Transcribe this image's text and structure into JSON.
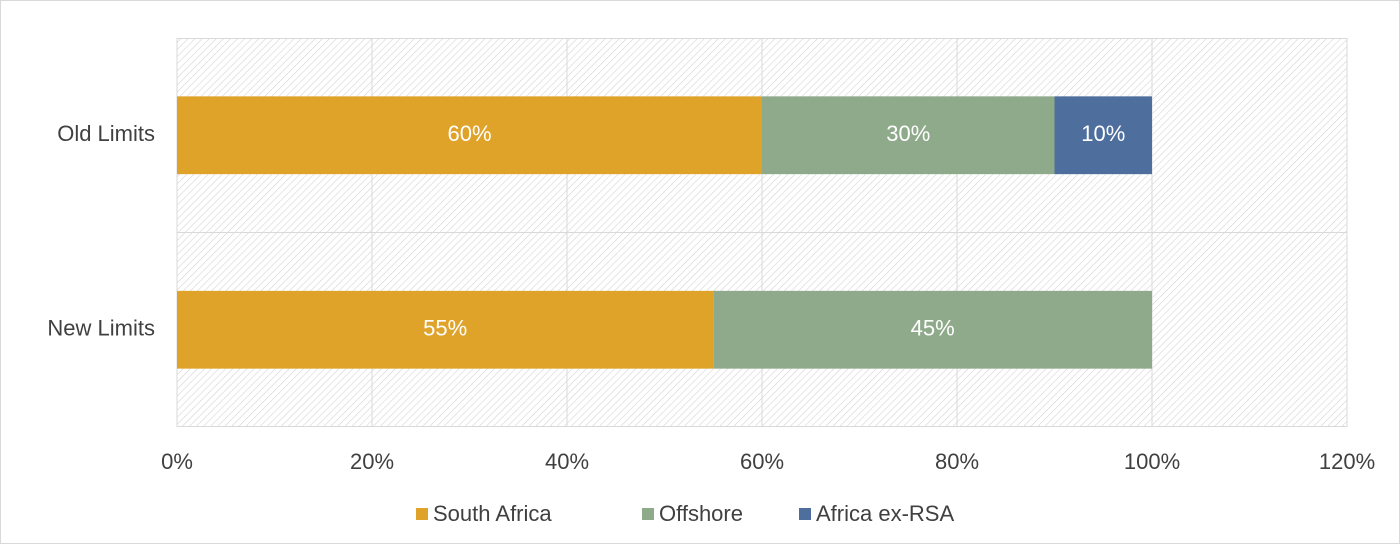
{
  "chart_data": {
    "type": "stacked-bar",
    "categories": [
      "Old Limits",
      "New Limits"
    ],
    "series": [
      {
        "name": "South Africa",
        "color": "#e0a32a",
        "values": [
          60,
          55
        ],
        "value_labels": [
          "60%",
          "55%"
        ]
      },
      {
        "name": "Offshore",
        "color": "#8faa8a",
        "values": [
          30,
          45
        ],
        "value_labels": [
          "30%",
          "45%"
        ]
      },
      {
        "name": "Africa ex-RSA",
        "color": "#4e6e9e",
        "values": [
          10,
          null
        ],
        "value_labels": [
          "10%",
          null
        ]
      }
    ],
    "xlim": [
      0,
      120
    ],
    "xticks": [
      {
        "value": 0,
        "label": "0%"
      },
      {
        "value": 20,
        "label": "20%"
      },
      {
        "value": 40,
        "label": "40%"
      },
      {
        "value": 60,
        "label": "60%"
      },
      {
        "value": 80,
        "label": "80%"
      },
      {
        "value": 100,
        "label": "100%"
      },
      {
        "value": 120,
        "label": "120%"
      }
    ],
    "grid": true,
    "legend": "bottom"
  }
}
